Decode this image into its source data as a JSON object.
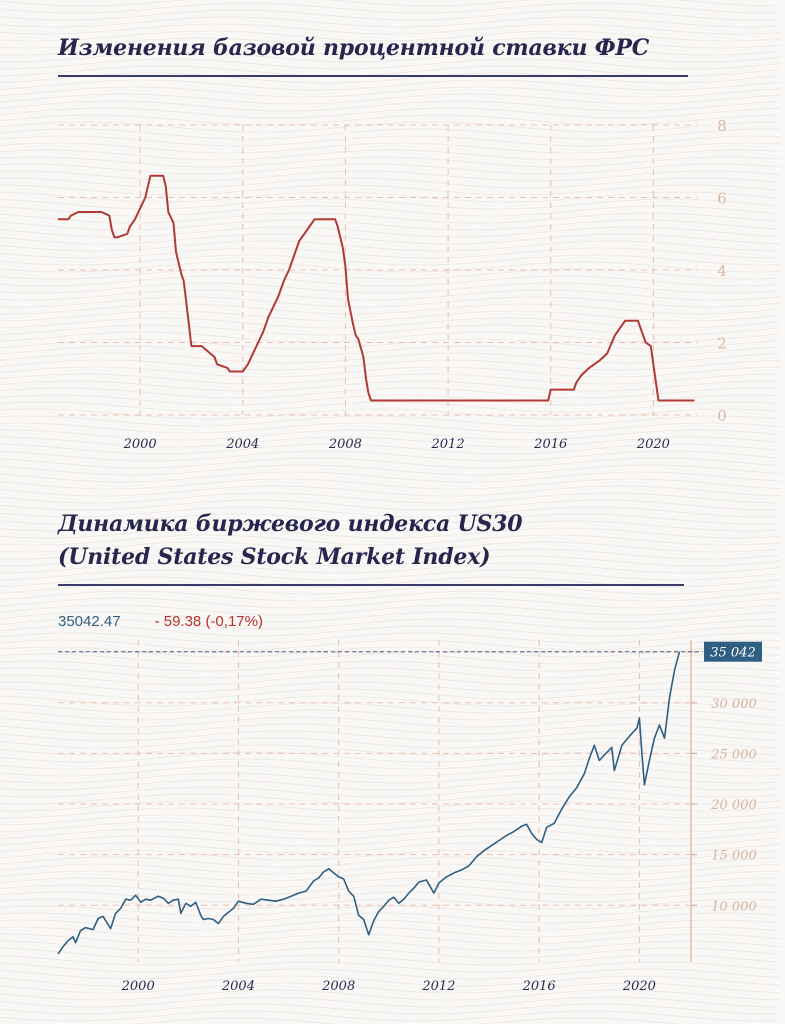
{
  "chart1": {
    "title": "Изменения базовой процентной ставки ФРС",
    "chart_data": {
      "type": "line",
      "title": "Изменения базовой процентной ставки ФРС",
      "xlabel": "",
      "ylabel": "",
      "xlim": [
        1996.8,
        2021.7
      ],
      "ylim": [
        0,
        8
      ],
      "x_ticks": [
        2000,
        2004,
        2008,
        2012,
        2016,
        2020
      ],
      "y_ticks": [
        0,
        2,
        4,
        6,
        8
      ],
      "grid": true,
      "line_color": "#b13a36",
      "series": [
        {
          "x": [
            1996.8,
            1997.2,
            1997.3,
            1997.6,
            1998.0,
            1998.5,
            1998.8,
            1998.9,
            1999.0,
            1999.1,
            1999.5,
            1999.6,
            1999.8,
            2000.0,
            2000.2,
            2000.4,
            2000.9,
            2001.0,
            2001.1,
            2001.3,
            2001.4,
            2001.6,
            2001.7,
            2001.9,
            2002.0,
            2002.4,
            2002.9,
            2003.0,
            2003.4,
            2003.5,
            2004.0,
            2004.2,
            2004.4,
            2004.6,
            2004.8,
            2005.0,
            2005.2,
            2005.4,
            2005.6,
            2005.8,
            2006.0,
            2006.2,
            2006.4,
            2006.6,
            2006.8,
            2007.0,
            2007.6,
            2007.7,
            2007.8,
            2007.9,
            2008.0,
            2008.1,
            2008.3,
            2008.4,
            2008.5,
            2008.7,
            2008.8,
            2008.9,
            2009.0,
            2010.0,
            2012.0,
            2014.0,
            2015.9,
            2016.0,
            2016.9,
            2017.0,
            2017.2,
            2017.5,
            2017.9,
            2018.2,
            2018.5,
            2018.7,
            2018.9,
            2019.4,
            2019.5,
            2019.6,
            2019.7,
            2019.9,
            2020.1,
            2020.2,
            2021.6
          ],
          "y": [
            5.4,
            5.4,
            5.5,
            5.6,
            5.6,
            5.6,
            5.5,
            5.1,
            4.9,
            4.9,
            5.0,
            5.2,
            5.4,
            5.7,
            6.0,
            6.6,
            6.6,
            6.3,
            5.6,
            5.3,
            4.5,
            3.9,
            3.7,
            2.5,
            1.9,
            1.9,
            1.6,
            1.4,
            1.3,
            1.2,
            1.2,
            1.4,
            1.7,
            2.0,
            2.3,
            2.7,
            3.0,
            3.3,
            3.7,
            4.0,
            4.4,
            4.8,
            5.0,
            5.2,
            5.4,
            5.4,
            5.4,
            5.2,
            4.9,
            4.6,
            4.1,
            3.2,
            2.5,
            2.2,
            2.1,
            1.6,
            1.0,
            0.6,
            0.4,
            0.4,
            0.4,
            0.4,
            0.4,
            0.7,
            0.7,
            0.9,
            1.1,
            1.3,
            1.5,
            1.7,
            2.2,
            2.4,
            2.6,
            2.6,
            2.4,
            2.2,
            2.0,
            1.9,
            0.9,
            0.4,
            0.4
          ]
        }
      ]
    }
  },
  "chart2": {
    "title_line1": "Динамика биржевого индекса US30",
    "title_line2": "(United States Stock Market Index)",
    "quote": {
      "price": "35042.47",
      "change": "- 59.38 (-0,17%)"
    },
    "last_value_label": "35 042",
    "last_value_label_color": "#2f5f82",
    "chart_data": {
      "type": "line",
      "title": "Динамика биржевого индекса US30",
      "xlabel": "",
      "ylabel": "",
      "xlim": [
        1996.8,
        2021.7
      ],
      "ylim": [
        4400,
        36200
      ],
      "x_ticks": [
        2000,
        2004,
        2008,
        2012,
        2016,
        2020
      ],
      "y_ticks": [
        10000,
        15000,
        20000,
        25000,
        30000,
        35000
      ],
      "y_tick_labels": [
        "10 000",
        "15 000",
        "20 000",
        "25 000",
        "30 000"
      ],
      "grid": true,
      "line_color": "#2f5f82",
      "series": [
        {
          "x": [
            1996.8,
            1997.0,
            1997.2,
            1997.4,
            1997.5,
            1997.7,
            1997.9,
            1998.2,
            1998.4,
            1998.6,
            1998.8,
            1998.9,
            1999.1,
            1999.3,
            1999.5,
            1999.7,
            1999.9,
            2000.1,
            2000.3,
            2000.5,
            2000.8,
            2001.0,
            2001.2,
            2001.4,
            2001.6,
            2001.7,
            2001.9,
            2002.1,
            2002.3,
            2002.5,
            2002.6,
            2002.8,
            2003.0,
            2003.2,
            2003.4,
            2003.6,
            2003.8,
            2004.0,
            2004.3,
            2004.6,
            2004.9,
            2005.2,
            2005.5,
            2005.8,
            2006.1,
            2006.4,
            2006.7,
            2007.0,
            2007.2,
            2007.4,
            2007.6,
            2007.8,
            2008.0,
            2008.2,
            2008.4,
            2008.6,
            2008.8,
            2009.0,
            2009.2,
            2009.4,
            2009.6,
            2009.8,
            2010.0,
            2010.2,
            2010.4,
            2010.6,
            2010.8,
            2011.0,
            2011.2,
            2011.5,
            2011.8,
            2012.0,
            2012.3,
            2012.6,
            2012.9,
            2013.2,
            2013.5,
            2013.8,
            2014.1,
            2014.4,
            2014.7,
            2015.0,
            2015.3,
            2015.5,
            2015.7,
            2015.9,
            2016.1,
            2016.3,
            2016.6,
            2016.9,
            2017.2,
            2017.5,
            2017.8,
            2018.0,
            2018.2,
            2018.4,
            2018.7,
            2018.9,
            2019.0,
            2019.3,
            2019.6,
            2019.9,
            2020.0,
            2020.1,
            2020.2,
            2020.4,
            2020.6,
            2020.8,
            2021.0,
            2021.2,
            2021.4,
            2021.6
          ],
          "y": [
            5200,
            5900,
            6500,
            6900,
            6300,
            7500,
            7800,
            7600,
            8700,
            8900,
            8100,
            7700,
            9200,
            9700,
            10600,
            10500,
            11000,
            10300,
            10600,
            10500,
            10900,
            10700,
            10200,
            10500,
            10600,
            9200,
            10200,
            9900,
            10300,
            9000,
            8600,
            8700,
            8600,
            8200,
            8900,
            9300,
            9700,
            10400,
            10200,
            10100,
            10600,
            10500,
            10400,
            10600,
            10900,
            11200,
            11400,
            12400,
            12700,
            13300,
            13600,
            13200,
            12800,
            12600,
            11400,
            10900,
            9000,
            8600,
            7100,
            8500,
            9400,
            9900,
            10500,
            10800,
            10200,
            10600,
            11200,
            11700,
            12300,
            12500,
            11200,
            12200,
            12800,
            13200,
            13500,
            13900,
            14800,
            15400,
            15900,
            16400,
            16900,
            17300,
            17800,
            18000,
            17100,
            16500,
            16200,
            17700,
            18100,
            19500,
            20700,
            21600,
            23000,
            24500,
            25800,
            24300,
            25100,
            25600,
            23300,
            25800,
            26700,
            27500,
            28500,
            25000,
            21900,
            24300,
            26500,
            27800,
            26500,
            30500,
            33200,
            35042
          ]
        }
      ]
    }
  }
}
